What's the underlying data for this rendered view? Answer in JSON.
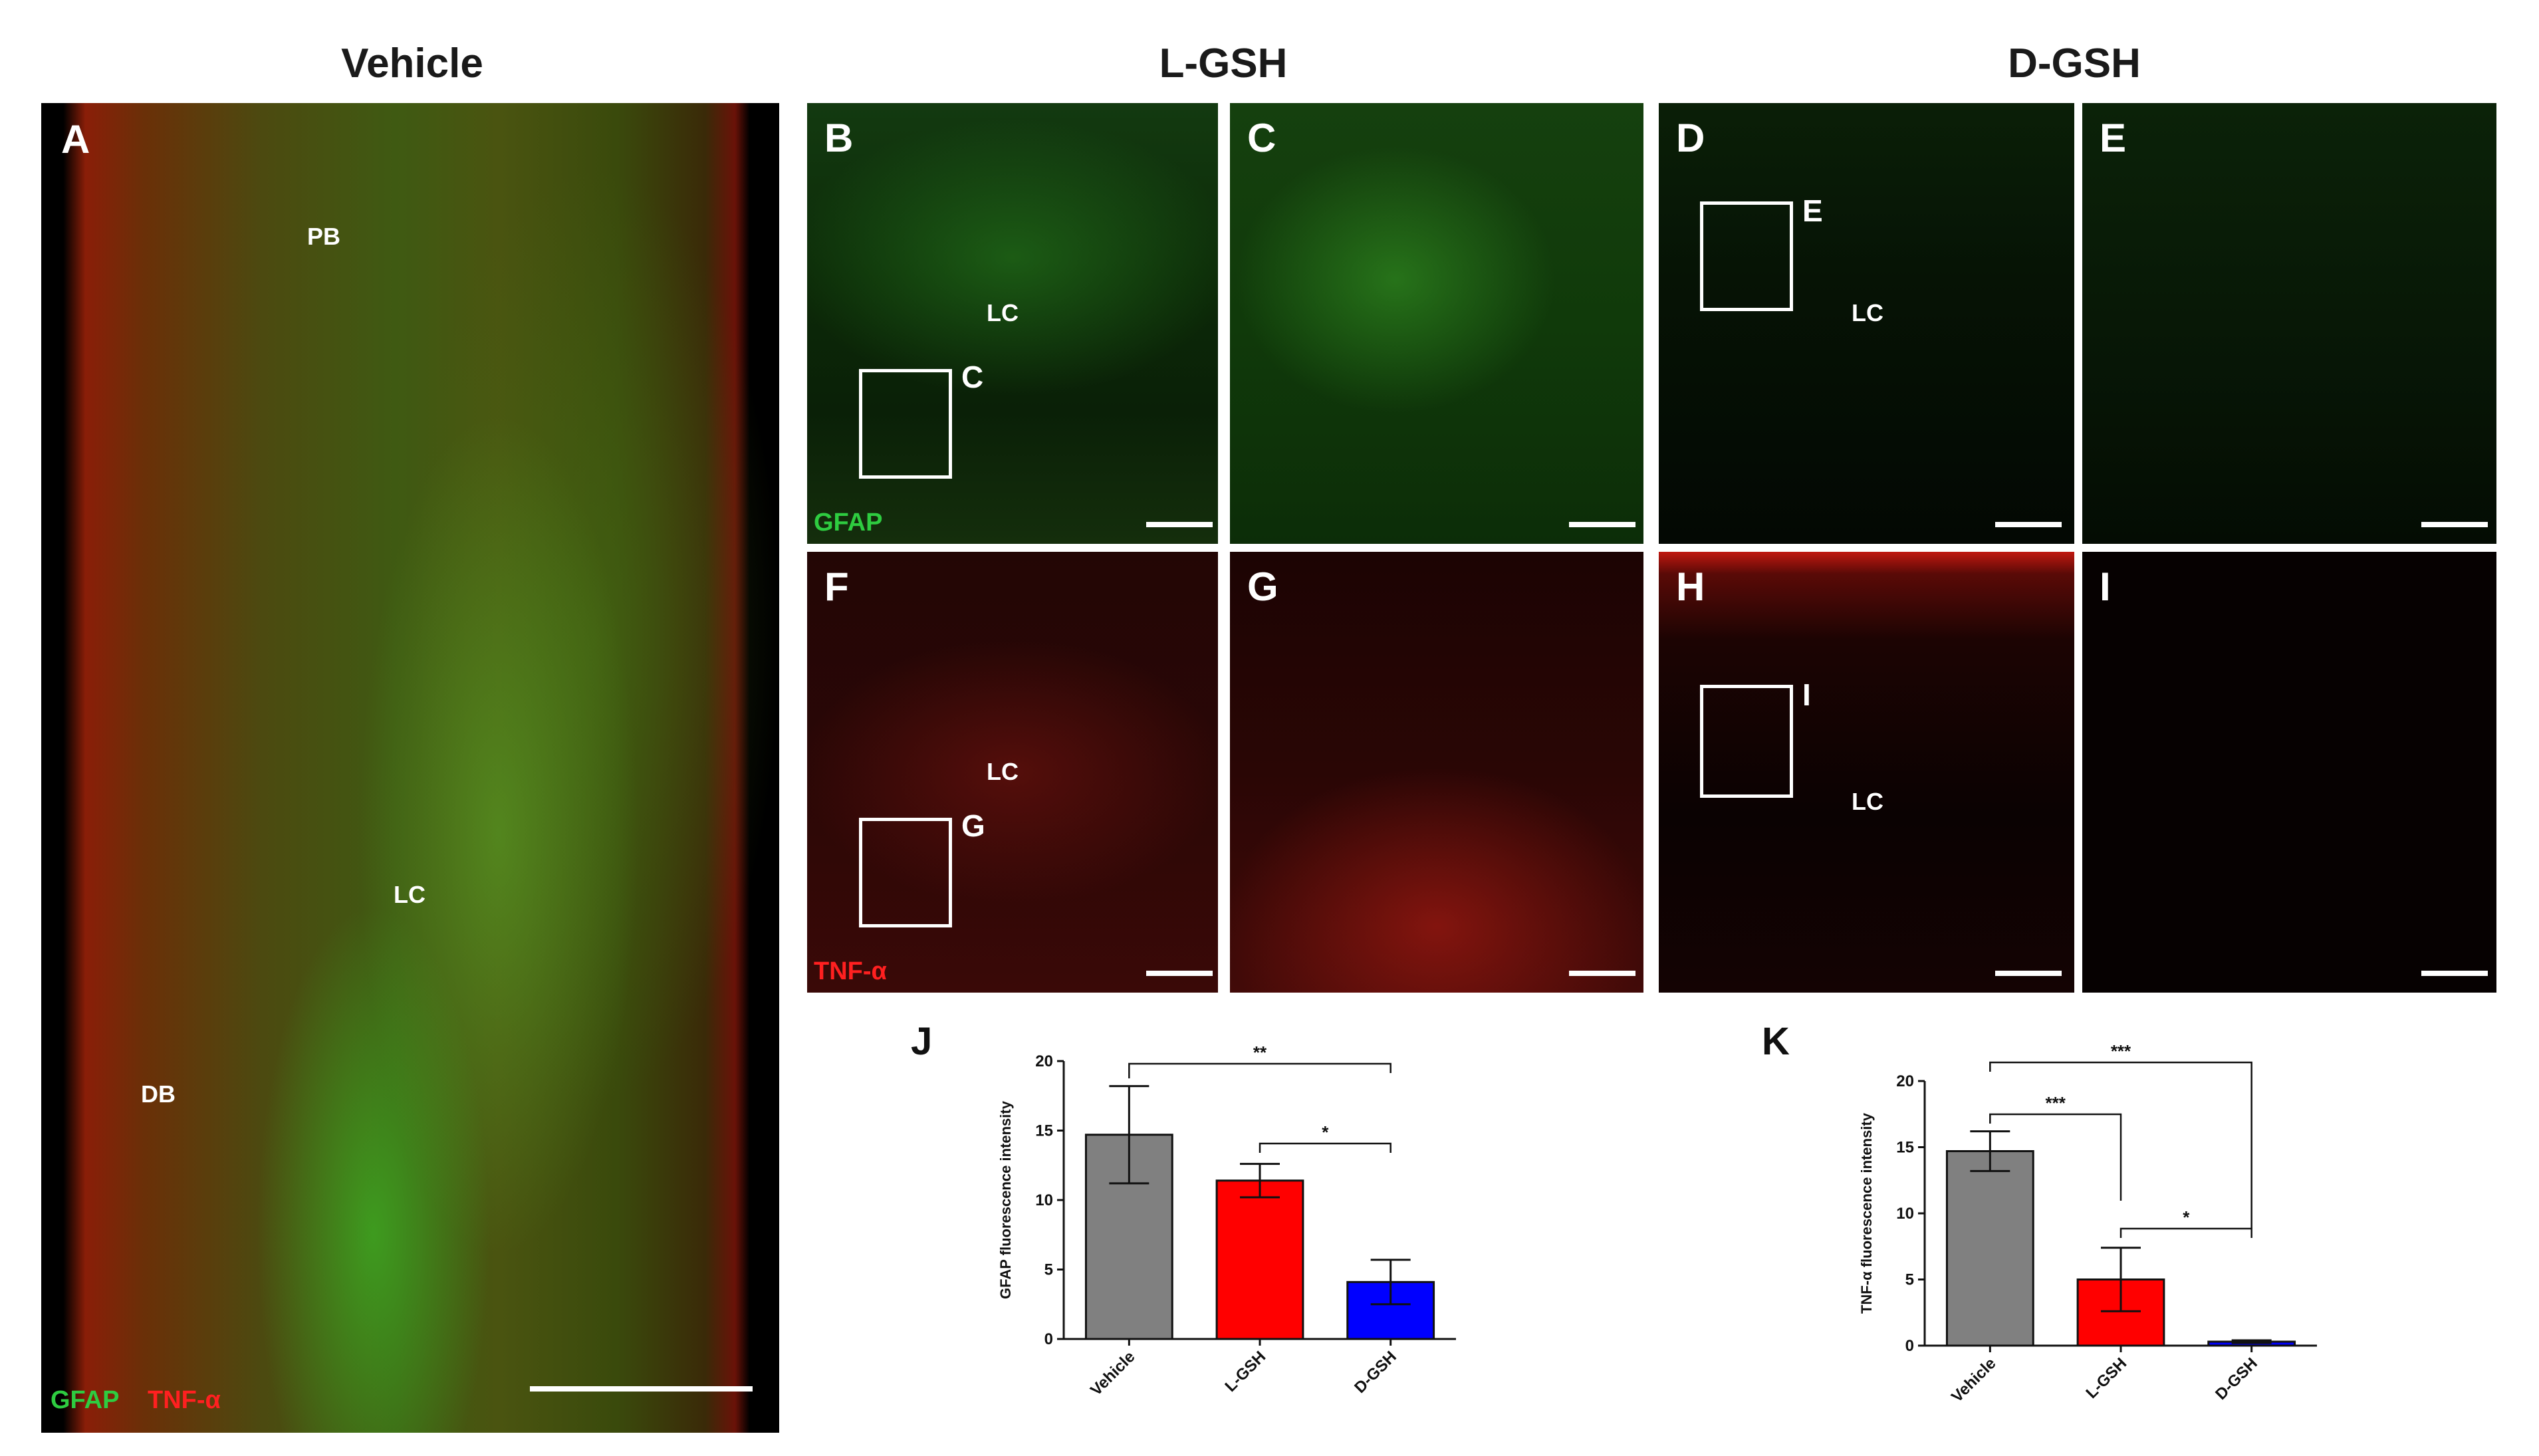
{
  "headers": {
    "vehicle": "Vehicle",
    "lgsh": "L-GSH",
    "dgsh": "D-GSH"
  },
  "panels": {
    "A": "A",
    "B": "B",
    "C": "C",
    "D": "D",
    "E": "E",
    "F": "F",
    "G": "G",
    "H": "H",
    "I": "I"
  },
  "regions": {
    "pb": "PB",
    "lc": "LC",
    "db": "DB"
  },
  "insets": {
    "c": "C",
    "e": "E",
    "g": "G",
    "i": "I"
  },
  "stains": {
    "gfap": "GFAP",
    "tnf": "TNF-α"
  },
  "colors": {
    "green": "#2ecc40",
    "red": "#ff2020",
    "vehicle": "#808080",
    "lgsh": "#ff0000",
    "dgsh": "#0000ff"
  },
  "chart_data": [
    {
      "type": "bar",
      "panel_letter": "J",
      "categories": [
        "Vehicle",
        "L-GSH",
        "D-GSH"
      ],
      "values": [
        14.7,
        11.4,
        4.1
      ],
      "errors": [
        3.5,
        1.2,
        1.6
      ],
      "ylabel": "GFAP fluorescence intensity",
      "ylim": [
        0,
        20
      ],
      "yticks": [
        "0",
        "5",
        "10",
        "15",
        "20"
      ],
      "significance": [
        {
          "from": 0,
          "to": 2,
          "label": "**"
        },
        {
          "from": 1,
          "to": 2,
          "label": "*"
        }
      ]
    },
    {
      "type": "bar",
      "panel_letter": "K",
      "categories": [
        "Vehicle",
        "L-GSH",
        "D-GSH"
      ],
      "values": [
        14.7,
        5.0,
        0.3
      ],
      "errors": [
        1.5,
        2.4,
        0.1
      ],
      "ylabel": "TNF-α fluorescence intensity",
      "ylim": [
        0,
        20
      ],
      "yticks": [
        "0",
        "5",
        "10",
        "15",
        "20"
      ],
      "significance": [
        {
          "from": 0,
          "to": 2,
          "label": "***"
        },
        {
          "from": 0,
          "to": 1,
          "label": "***"
        },
        {
          "from": 1,
          "to": 2,
          "label": "*"
        }
      ]
    }
  ]
}
